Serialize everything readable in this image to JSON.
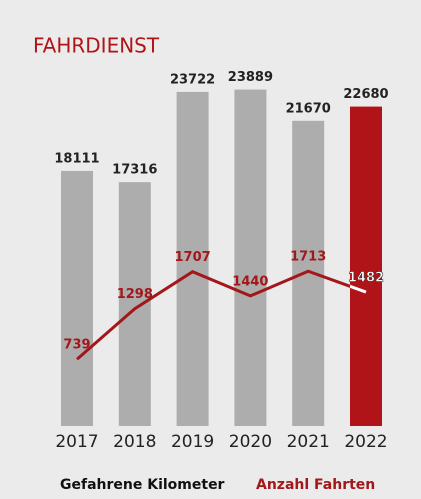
{
  "chart_data": {
    "type": "bar_line",
    "title": "FAHRDIENST",
    "categories": [
      "2017",
      "2018",
      "2019",
      "2020",
      "2021",
      "2022"
    ],
    "ylim": [
      0,
      24000
    ],
    "y2lim": [
      0,
      3740
    ],
    "series": [
      {
        "name": "Gefahrene Kilometer",
        "type": "bar",
        "color": "#111111",
        "bar_colors": [
          "#adadad",
          "#adadad",
          "#adadad",
          "#adadad",
          "#adadad",
          "#b01318"
        ],
        "values": [
          18111,
          17316,
          23722,
          23889,
          21670,
          22680
        ]
      },
      {
        "name": "Anzahl Fahrten",
        "type": "line",
        "axis": "y2",
        "color": "#a3171b",
        "values": [
          739,
          1298,
          1707,
          1440,
          1713,
          1482
        ]
      }
    ]
  }
}
